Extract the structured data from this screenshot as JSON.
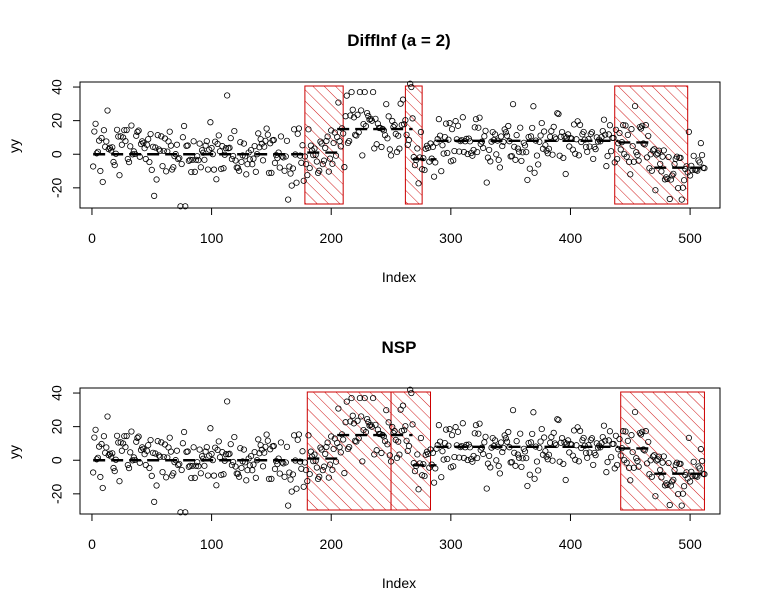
{
  "chart_data": [
    {
      "type": "scatter",
      "title": "DiffInf (a = 2)",
      "xlabel": "Index",
      "ylabel": "yy",
      "xticks": [
        0,
        100,
        200,
        300,
        400,
        500
      ],
      "yticks": [
        -20,
        0,
        20,
        40
      ],
      "xlim": [
        -10,
        525
      ],
      "ylim": [
        -32,
        43
      ],
      "n_points": 512,
      "intervals": [
        [
          178,
          210
        ],
        [
          262,
          276
        ],
        [
          437,
          498
        ]
      ],
      "segments": [
        {
          "x": [
            1,
            180
          ],
          "y": 0
        },
        {
          "x": [
            180,
            205
          ],
          "y": 1
        },
        {
          "x": [
            205,
            268
          ],
          "y": 15
        },
        {
          "x": [
            268,
            288
          ],
          "y": -3
        },
        {
          "x": [
            288,
            440
          ],
          "y": 8
        },
        {
          "x": [
            440,
            470
          ],
          "y": 7
        },
        {
          "x": [
            470,
            512
          ],
          "y": -8
        }
      ],
      "outliers": [
        [
          13,
          26
        ],
        [
          74,
          -31
        ],
        [
          78,
          -31
        ],
        [
          113,
          35
        ],
        [
          266,
          42
        ],
        [
          267,
          40
        ]
      ],
      "colors": {
        "points": "#000000",
        "interval": "#cc0000",
        "segment": "#000000"
      }
    },
    {
      "type": "scatter",
      "title": "NSP",
      "xlabel": "Index",
      "ylabel": "yy",
      "xticks": [
        0,
        100,
        200,
        300,
        400,
        500
      ],
      "yticks": [
        -20,
        0,
        20,
        40
      ],
      "xlim": [
        -10,
        525
      ],
      "ylim": [
        -32,
        43
      ],
      "n_points": 512,
      "intervals": [
        [
          180,
          250
        ],
        [
          250,
          283
        ],
        [
          442,
          512
        ]
      ],
      "segments": [
        {
          "x": [
            1,
            180
          ],
          "y": 0
        },
        {
          "x": [
            180,
            205
          ],
          "y": 1
        },
        {
          "x": [
            205,
            268
          ],
          "y": 15
        },
        {
          "x": [
            268,
            288
          ],
          "y": -3
        },
        {
          "x": [
            288,
            440
          ],
          "y": 8
        },
        {
          "x": [
            440,
            470
          ],
          "y": 7
        },
        {
          "x": [
            470,
            512
          ],
          "y": -8
        }
      ],
      "outliers": [
        [
          13,
          26
        ],
        [
          74,
          -31
        ],
        [
          78,
          -31
        ],
        [
          113,
          35
        ],
        [
          266,
          42
        ],
        [
          267,
          40
        ]
      ],
      "colors": {
        "points": "#000000",
        "interval": "#cc0000",
        "segment": "#000000"
      }
    }
  ]
}
